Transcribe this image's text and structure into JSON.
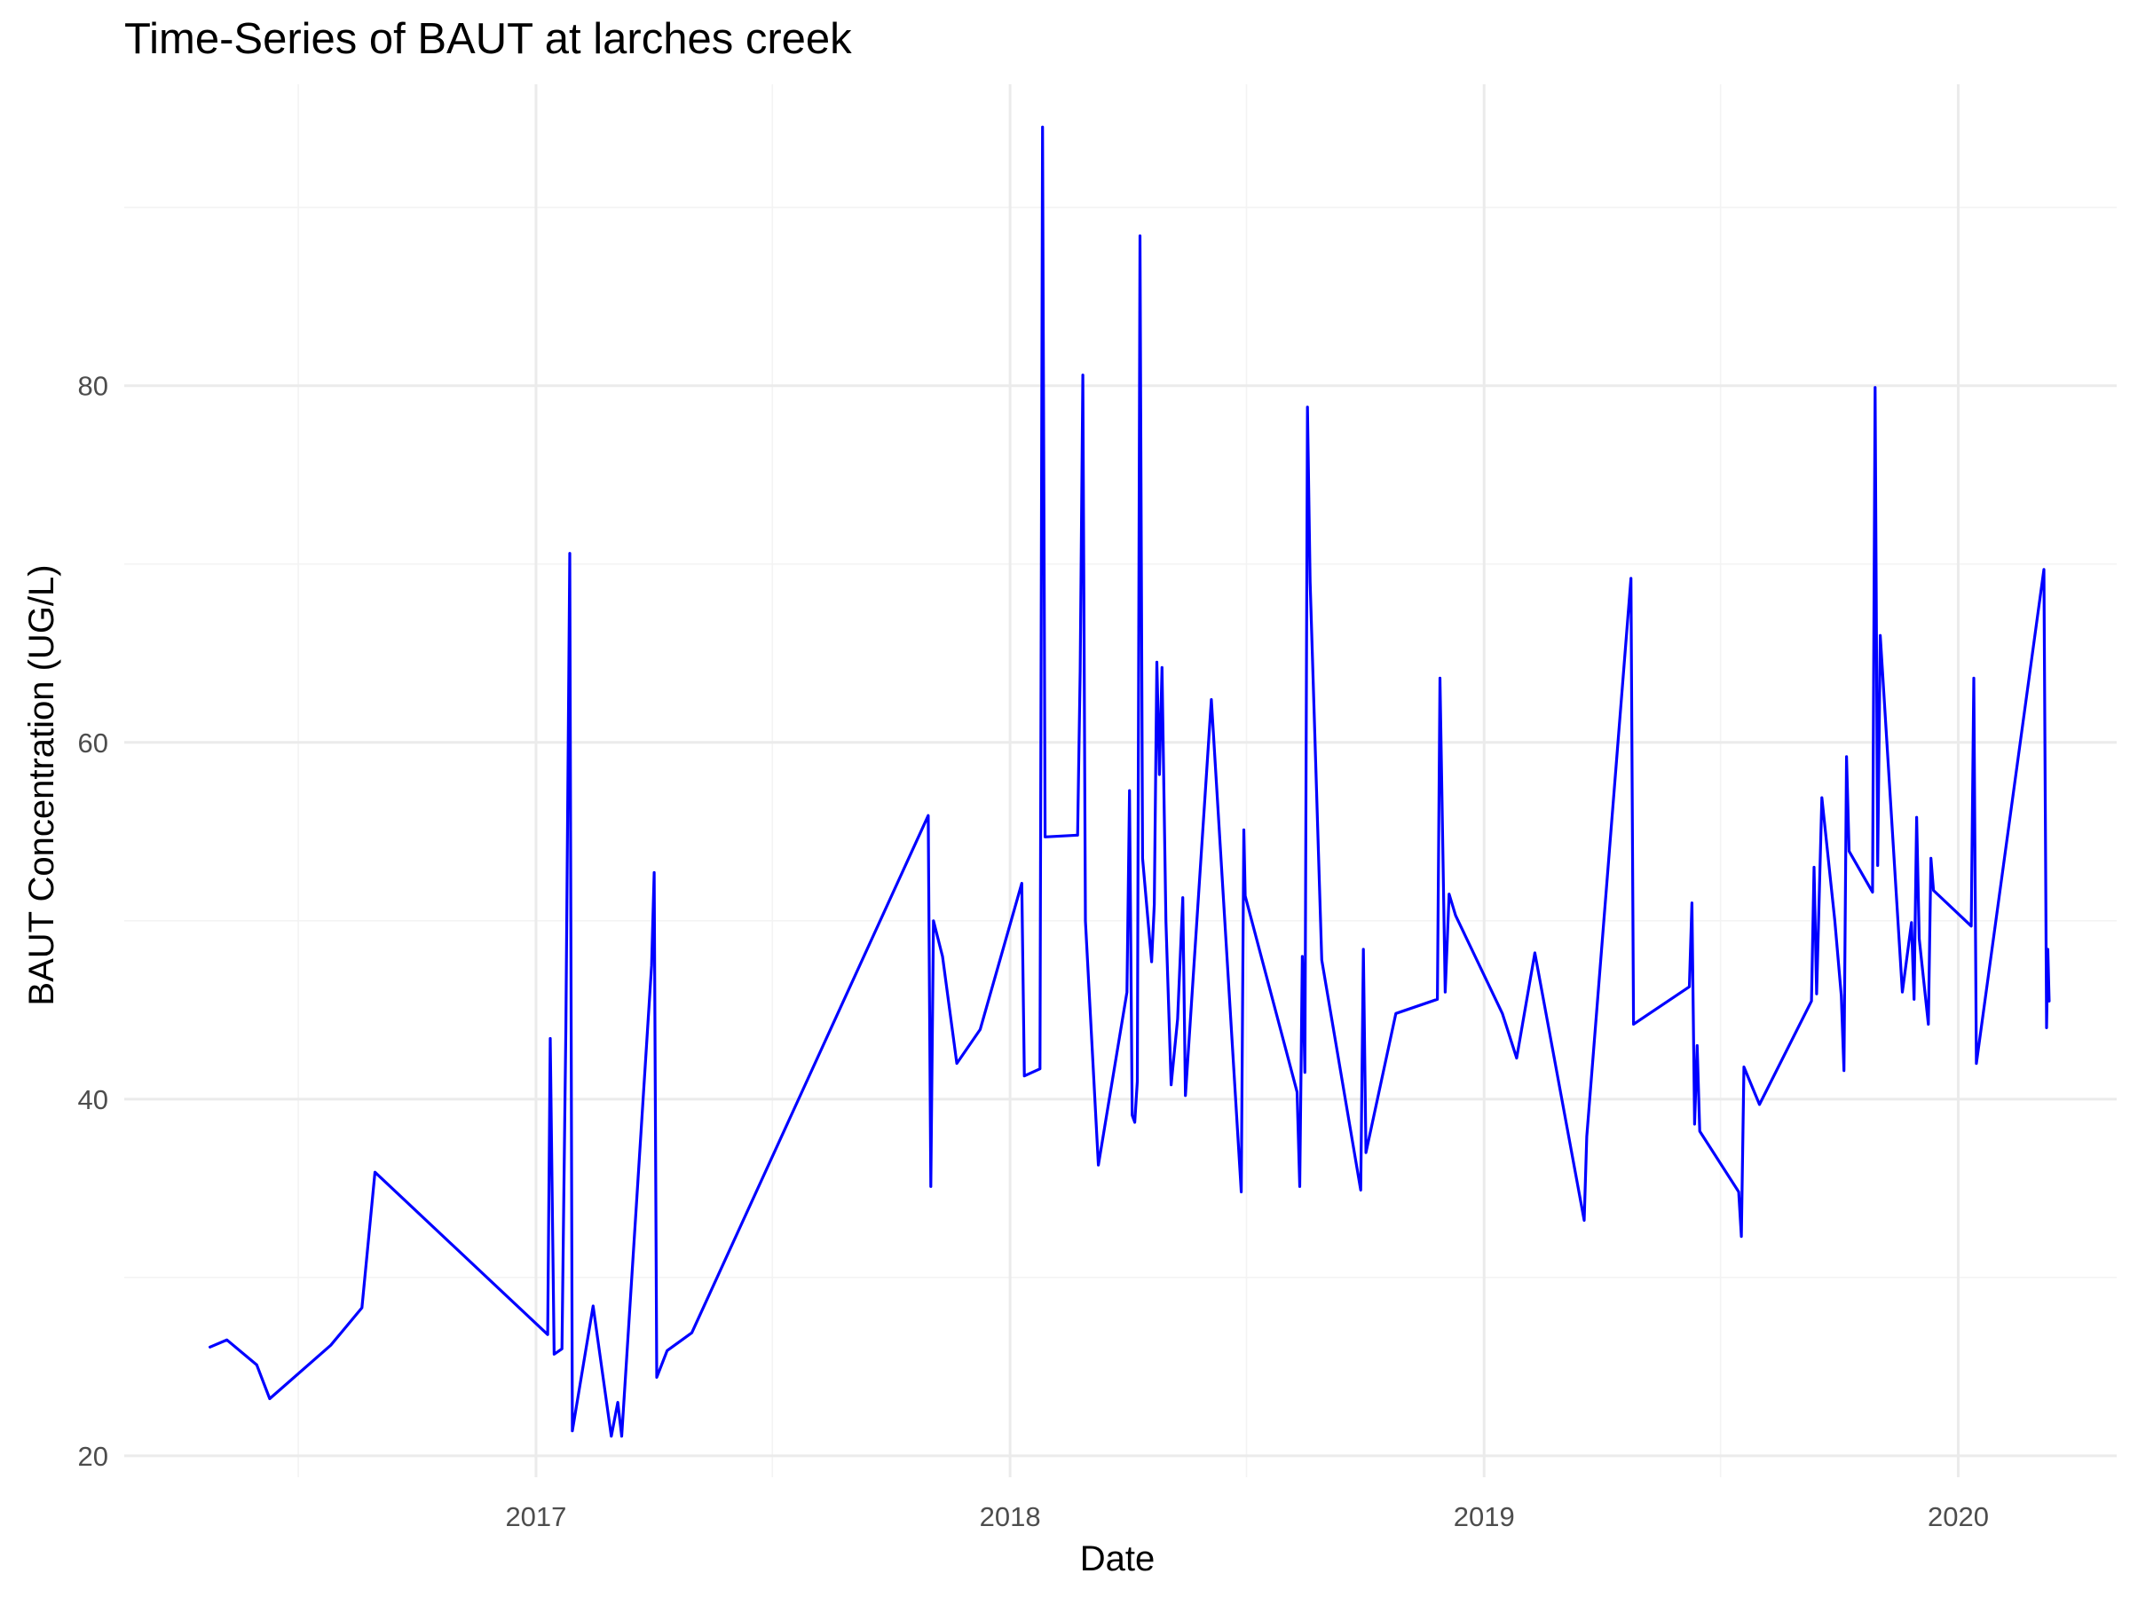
{
  "chart_data": {
    "type": "line",
    "title": "Time-Series of BAUT at larches creek",
    "xlabel": "Date",
    "ylabel": "BAUT Concentration (UG/L)",
    "x_ticks": [
      "2017",
      "2018",
      "2019",
      "2020"
    ],
    "y_ticks": [
      "20",
      "40",
      "60",
      "80"
    ],
    "xlim": [
      "2016-02-19",
      "2020-05-02"
    ],
    "ylim": [
      18.8,
      96.9
    ],
    "grid": true,
    "line_color": "#0000ff",
    "series": [
      {
        "points": [
          [
            "2016-04-25",
            26.1
          ],
          [
            "2016-05-08",
            26.5
          ],
          [
            "2016-05-31",
            25.1
          ],
          [
            "2016-06-10",
            23.2
          ],
          [
            "2016-07-27",
            26.2
          ],
          [
            "2016-08-20",
            28.3
          ],
          [
            "2016-08-30",
            35.9
          ],
          [
            "2017-01-10",
            26.8
          ],
          [
            "2017-01-12",
            43.4
          ],
          [
            "2017-01-15",
            25.7
          ],
          [
            "2017-01-21",
            26.0
          ],
          [
            "2017-01-24",
            44.0
          ],
          [
            "2017-01-27",
            70.6
          ],
          [
            "2017-01-29",
            21.4
          ],
          [
            "2017-02-14",
            28.4
          ],
          [
            "2017-02-28",
            21.1
          ],
          [
            "2017-03-05",
            23.0
          ],
          [
            "2017-03-08",
            21.1
          ],
          [
            "2017-03-31",
            47.5
          ],
          [
            "2017-04-02",
            52.7
          ],
          [
            "2017-04-04",
            24.4
          ],
          [
            "2017-04-12",
            25.9
          ],
          [
            "2017-05-01",
            26.9
          ],
          [
            "2017-10-30",
            55.9
          ],
          [
            "2017-11-01",
            35.1
          ],
          [
            "2017-11-03",
            50.0
          ],
          [
            "2017-11-10",
            48.0
          ],
          [
            "2017-11-21",
            42.0
          ],
          [
            "2017-12-09",
            43.9
          ],
          [
            "2018-01-10",
            52.1
          ],
          [
            "2018-01-12",
            41.3
          ],
          [
            "2018-01-24",
            41.7
          ],
          [
            "2018-01-26",
            94.5
          ],
          [
            "2018-01-28",
            54.7
          ],
          [
            "2018-02-22",
            54.8
          ],
          [
            "2018-02-24",
            64.0
          ],
          [
            "2018-02-26",
            80.6
          ],
          [
            "2018-02-28",
            50.0
          ],
          [
            "2018-03-10",
            36.3
          ],
          [
            "2018-04-01",
            46.0
          ],
          [
            "2018-04-03",
            57.3
          ],
          [
            "2018-04-05",
            39.1
          ],
          [
            "2018-04-07",
            38.7
          ],
          [
            "2018-04-09",
            41.0
          ],
          [
            "2018-04-11",
            88.4
          ],
          [
            "2018-04-13",
            53.5
          ],
          [
            "2018-04-20",
            47.7
          ],
          [
            "2018-04-22",
            50.9
          ],
          [
            "2018-04-24",
            64.5
          ],
          [
            "2018-04-26",
            58.2
          ],
          [
            "2018-04-28",
            64.2
          ],
          [
            "2018-05-01",
            50.0
          ],
          [
            "2018-05-05",
            40.8
          ],
          [
            "2018-05-10",
            44.5
          ],
          [
            "2018-05-14",
            51.3
          ],
          [
            "2018-05-16",
            40.2
          ],
          [
            "2018-06-05",
            62.4
          ],
          [
            "2018-06-28",
            34.8
          ],
          [
            "2018-06-30",
            55.1
          ],
          [
            "2018-07-01",
            51.4
          ],
          [
            "2018-08-10",
            40.4
          ],
          [
            "2018-08-12",
            35.1
          ],
          [
            "2018-08-14",
            48.0
          ],
          [
            "2018-08-16",
            41.5
          ],
          [
            "2018-08-18",
            78.8
          ],
          [
            "2018-08-20",
            69.0
          ],
          [
            "2018-08-29",
            47.8
          ],
          [
            "2018-09-28",
            34.9
          ],
          [
            "2018-09-30",
            48.4
          ],
          [
            "2018-10-02",
            37.0
          ],
          [
            "2018-10-25",
            44.8
          ],
          [
            "2018-11-26",
            45.6
          ],
          [
            "2018-11-28",
            63.6
          ],
          [
            "2018-11-30",
            55.0
          ],
          [
            "2018-12-02",
            46.0
          ],
          [
            "2018-12-05",
            51.5
          ],
          [
            "2018-12-10",
            50.3
          ],
          [
            "2019-01-15",
            44.8
          ],
          [
            "2019-01-26",
            42.3
          ],
          [
            "2019-02-09",
            48.2
          ],
          [
            "2019-03-19",
            33.2
          ],
          [
            "2019-03-21",
            37.9
          ],
          [
            "2019-04-24",
            69.2
          ],
          [
            "2019-04-26",
            44.2
          ],
          [
            "2019-06-08",
            46.3
          ],
          [
            "2019-06-10",
            51.0
          ],
          [
            "2019-06-12",
            38.6
          ],
          [
            "2019-06-14",
            43.0
          ],
          [
            "2019-06-16",
            38.2
          ],
          [
            "2019-07-16",
            34.8
          ],
          [
            "2019-07-18",
            32.3
          ],
          [
            "2019-07-20",
            41.8
          ],
          [
            "2019-08-01",
            39.7
          ],
          [
            "2019-09-10",
            45.5
          ],
          [
            "2019-09-12",
            53.0
          ],
          [
            "2019-09-14",
            45.9
          ],
          [
            "2019-09-18",
            56.9
          ],
          [
            "2019-09-28",
            50.0
          ],
          [
            "2019-10-03",
            45.8
          ],
          [
            "2019-10-05",
            41.6
          ],
          [
            "2019-10-07",
            59.2
          ],
          [
            "2019-10-09",
            53.9
          ],
          [
            "2019-10-27",
            51.6
          ],
          [
            "2019-10-29",
            79.9
          ],
          [
            "2019-10-31",
            53.1
          ],
          [
            "2019-11-02",
            66.0
          ],
          [
            "2019-11-19",
            46.0
          ],
          [
            "2019-11-26",
            49.9
          ],
          [
            "2019-11-28",
            45.6
          ],
          [
            "2019-11-30",
            55.8
          ],
          [
            "2019-12-02",
            49.0
          ],
          [
            "2019-12-09",
            44.2
          ],
          [
            "2019-12-11",
            53.5
          ],
          [
            "2019-12-13",
            51.7
          ],
          [
            "2020-01-11",
            49.7
          ],
          [
            "2020-01-13",
            63.6
          ],
          [
            "2020-01-15",
            42.0
          ],
          [
            "2020-03-07",
            69.7
          ],
          [
            "2020-03-09",
            44.0
          ],
          [
            "2020-03-10",
            48.4
          ],
          [
            "2020-03-11",
            45.5
          ]
        ]
      }
    ]
  }
}
